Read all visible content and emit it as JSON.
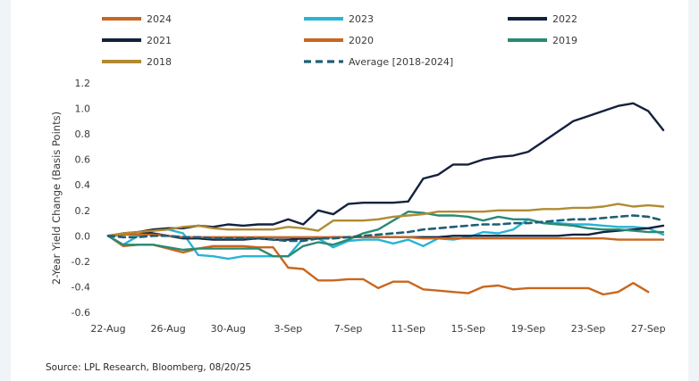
{
  "chart_data": {
    "type": "line",
    "title": "",
    "xlabel": "",
    "ylabel": "2-Year Yield Change (Basis Points)",
    "ylim": [
      -0.6,
      1.2
    ],
    "yticks": [
      -0.6,
      -0.4,
      -0.2,
      0.0,
      0.2,
      0.4,
      0.6,
      0.8,
      1.0,
      1.2
    ],
    "ytick_labels": [
      "-0.6",
      "-0.4",
      "-0.2",
      "0.0",
      "0.2",
      "0.4",
      "0.6",
      "0.8",
      "1.0",
      "1.2"
    ],
    "x_tick_labels": [
      "22-Aug",
      "26-Aug",
      "30-Aug",
      "3-Sep",
      "7-Sep",
      "11-Sep",
      "15-Sep",
      "19-Sep",
      "23-Sep",
      "27-Sep"
    ],
    "x_tick_days": [
      0,
      4,
      8,
      12,
      16,
      20,
      24,
      28,
      32,
      36
    ],
    "xlim": [
      0,
      37
    ],
    "source": "Source: LPL Research, Bloomberg, 08/20/25",
    "series": [
      {
        "name": "2024",
        "color": "#c8671f",
        "dash": false,
        "x": [
          0,
          1,
          2,
          3,
          4,
          5,
          6,
          7,
          8,
          9,
          10,
          11,
          12,
          13,
          14,
          15,
          16,
          17,
          18,
          19,
          20,
          21,
          22,
          23,
          24,
          25,
          26,
          27,
          28,
          29,
          30,
          31,
          32,
          33,
          34,
          35,
          36,
          37
        ],
        "y": [
          0,
          -0.08,
          -0.07,
          -0.07,
          -0.1,
          -0.13,
          -0.1,
          -0.08,
          -0.08,
          -0.08,
          -0.09,
          -0.09,
          -0.25,
          -0.26,
          -0.35,
          -0.35,
          -0.34,
          -0.34,
          -0.41,
          -0.36,
          -0.36,
          -0.42,
          -0.43,
          -0.44,
          -0.45,
          -0.4,
          -0.39,
          -0.42,
          -0.41,
          -0.41,
          -0.41,
          -0.41,
          -0.41,
          -0.46,
          -0.44,
          -0.37,
          -0.44,
          null
        ]
      },
      {
        "name": "2023",
        "color": "#27b4d6",
        "dash": false,
        "x": [
          0,
          1,
          2,
          3,
          4,
          5,
          6,
          7,
          8,
          9,
          10,
          11,
          12,
          13,
          14,
          15,
          16,
          17,
          18,
          19,
          20,
          21,
          22,
          23,
          24,
          25,
          26,
          27,
          28,
          29,
          30,
          31,
          32,
          33,
          34,
          35,
          36,
          37
        ],
        "y": [
          0,
          -0.07,
          0.0,
          0.04,
          0.05,
          0.02,
          -0.15,
          -0.16,
          -0.18,
          -0.16,
          -0.16,
          -0.16,
          -0.16,
          -0.02,
          -0.02,
          -0.09,
          -0.04,
          -0.03,
          -0.03,
          -0.06,
          -0.03,
          -0.08,
          -0.02,
          -0.03,
          -0.01,
          0.03,
          0.02,
          0.05,
          0.13,
          0.1,
          0.1,
          0.09,
          0.09,
          0.08,
          0.07,
          0.07,
          0.06,
          0.01
        ]
      },
      {
        "name": "2022",
        "color": "#14213d",
        "dash": false,
        "x": [
          0,
          1,
          2,
          3,
          4,
          5,
          6,
          7,
          8,
          9,
          10,
          11,
          12,
          13,
          14,
          15,
          16,
          17,
          18,
          19,
          20,
          21,
          22,
          23,
          24,
          25,
          26,
          27,
          28,
          29,
          30,
          31,
          32,
          33,
          34,
          35,
          36,
          37
        ],
        "y": [
          0,
          0.01,
          0.03,
          0.05,
          0.06,
          0.06,
          0.08,
          0.07,
          0.09,
          0.08,
          0.09,
          0.09,
          0.13,
          0.09,
          0.2,
          0.17,
          0.25,
          0.26,
          0.26,
          0.26,
          0.27,
          0.45,
          0.48,
          0.56,
          0.56,
          0.6,
          0.62,
          0.63,
          0.66,
          0.74,
          0.82,
          0.9,
          0.94,
          0.98,
          1.02,
          1.04,
          0.98,
          0.83
        ]
      },
      {
        "name": "2021",
        "color": "#14213d",
        "dash": false,
        "x": [
          0,
          1,
          2,
          3,
          4,
          5,
          6,
          7,
          8,
          9,
          10,
          11,
          12,
          13,
          14,
          15,
          16,
          17,
          18,
          19,
          20,
          21,
          22,
          23,
          24,
          25,
          26,
          27,
          28,
          29,
          30,
          31,
          32,
          33,
          34,
          35,
          36,
          37
        ],
        "y": [
          0,
          0.02,
          0.03,
          0.02,
          0.0,
          -0.02,
          -0.02,
          -0.03,
          -0.03,
          -0.03,
          -0.02,
          -0.03,
          -0.03,
          -0.02,
          -0.02,
          -0.01,
          -0.01,
          -0.01,
          -0.01,
          -0.01,
          -0.01,
          -0.01,
          -0.01,
          0.0,
          0.0,
          0.0,
          0.0,
          0.0,
          0.0,
          0.0,
          0.0,
          0.01,
          0.01,
          0.03,
          0.04,
          0.05,
          0.06,
          0.08
        ]
      },
      {
        "name": "2020",
        "color": "#c8671f",
        "dash": false,
        "x": [
          0,
          1,
          2,
          3,
          4,
          5,
          6,
          7,
          8,
          9,
          10,
          11,
          12,
          13,
          14,
          15,
          16,
          17,
          18,
          19,
          20,
          21,
          22,
          23,
          24,
          25,
          26,
          27,
          28,
          29,
          30,
          31,
          32,
          33,
          34,
          35,
          36,
          37
        ],
        "y": [
          0,
          0.01,
          0.01,
          0.01,
          0.0,
          -0.01,
          -0.01,
          -0.01,
          -0.01,
          -0.01,
          -0.01,
          -0.01,
          -0.01,
          -0.01,
          -0.01,
          -0.01,
          -0.01,
          -0.01,
          -0.01,
          -0.01,
          -0.01,
          -0.02,
          -0.02,
          -0.02,
          -0.02,
          -0.02,
          -0.02,
          -0.02,
          -0.02,
          -0.02,
          -0.02,
          -0.02,
          -0.02,
          -0.02,
          -0.03,
          -0.03,
          -0.03,
          -0.03
        ]
      },
      {
        "name": "2019",
        "color": "#2a8a73",
        "dash": false,
        "x": [
          0,
          1,
          2,
          3,
          4,
          5,
          6,
          7,
          8,
          9,
          10,
          11,
          12,
          13,
          14,
          15,
          16,
          17,
          18,
          19,
          20,
          21,
          22,
          23,
          24,
          25,
          26,
          27,
          28,
          29,
          30,
          31,
          32,
          33,
          34,
          35,
          36,
          37
        ],
        "y": [
          0,
          -0.07,
          -0.07,
          -0.07,
          -0.09,
          -0.11,
          -0.1,
          -0.1,
          -0.1,
          -0.1,
          -0.1,
          -0.16,
          -0.16,
          -0.08,
          -0.05,
          -0.07,
          -0.03,
          0.02,
          0.05,
          0.12,
          0.19,
          0.18,
          0.16,
          0.16,
          0.15,
          0.12,
          0.15,
          0.13,
          0.13,
          0.1,
          0.09,
          0.08,
          0.06,
          0.05,
          0.05,
          0.04,
          0.03,
          0.03
        ]
      },
      {
        "name": "2018",
        "color": "#b08b32",
        "dash": false,
        "x": [
          0,
          1,
          2,
          3,
          4,
          5,
          6,
          7,
          8,
          9,
          10,
          11,
          12,
          13,
          14,
          15,
          16,
          17,
          18,
          19,
          20,
          21,
          22,
          23,
          24,
          25,
          26,
          27,
          28,
          29,
          30,
          31,
          32,
          33,
          34,
          35,
          36,
          37
        ],
        "y": [
          0,
          0.02,
          0.03,
          0.04,
          0.05,
          0.07,
          0.08,
          0.06,
          0.05,
          0.05,
          0.05,
          0.05,
          0.07,
          0.06,
          0.04,
          0.12,
          0.12,
          0.12,
          0.13,
          0.15,
          0.16,
          0.17,
          0.19,
          0.19,
          0.19,
          0.19,
          0.2,
          0.2,
          0.2,
          0.21,
          0.21,
          0.22,
          0.22,
          0.23,
          0.25,
          0.23,
          0.24,
          0.23
        ]
      },
      {
        "name": "Average  [2018-2024]",
        "color": "#1f5f75",
        "dash": true,
        "x": [
          0,
          1,
          2,
          3,
          4,
          5,
          6,
          7,
          8,
          9,
          10,
          11,
          12,
          13,
          14,
          15,
          16,
          17,
          18,
          19,
          20,
          21,
          22,
          23,
          24,
          25,
          26,
          27,
          28,
          29,
          30,
          31,
          32,
          33,
          34,
          35,
          36,
          37
        ],
        "y": [
          0,
          -0.01,
          -0.01,
          0.0,
          0.0,
          -0.01,
          -0.01,
          -0.02,
          -0.02,
          -0.02,
          -0.02,
          -0.03,
          -0.04,
          -0.04,
          -0.02,
          -0.02,
          -0.01,
          0.0,
          0.01,
          0.02,
          0.03,
          0.05,
          0.06,
          0.07,
          0.08,
          0.09,
          0.09,
          0.1,
          0.1,
          0.11,
          0.12,
          0.13,
          0.13,
          0.14,
          0.15,
          0.16,
          0.15,
          0.12
        ]
      }
    ]
  }
}
